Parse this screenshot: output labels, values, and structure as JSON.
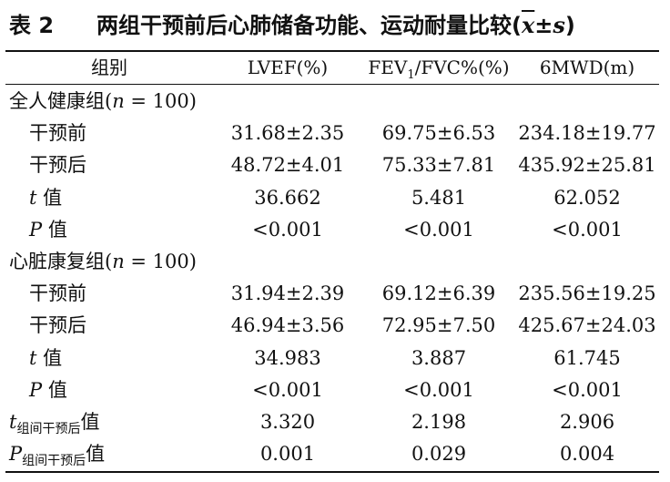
{
  "caption": {
    "number": "表 2",
    "title": "两组干预前后心肺储备功能、运动耐量比较(",
    "symbol": "x",
    "pm": "±",
    "s": "s",
    "close": ")"
  },
  "header": {
    "col0": "组别",
    "col1": "LVEF(%)",
    "col2_main": "FEV",
    "col2_sub": "1",
    "col2_rest": "/FVC%(%)",
    "col3": "6MWD(m)"
  },
  "rows": [
    {
      "type": "group",
      "label_pre": "全人健康组(",
      "label_n": "n",
      "label_post": " = 100)"
    },
    {
      "type": "data",
      "label": "干预前",
      "lvef": "31.68±2.35",
      "fev": "69.75±6.53",
      "mwd": "234.18±19.77"
    },
    {
      "type": "data",
      "label": "干预后",
      "lvef": "48.72±4.01",
      "fev": "75.33±7.81",
      "mwd": "435.92±25.81"
    },
    {
      "type": "stat",
      "sym": "t",
      "label": " 值",
      "lvef": "36.662",
      "fev": "5.481",
      "mwd": "62.052"
    },
    {
      "type": "stat",
      "sym": "P",
      "label": " 值",
      "lvef": "<0.001",
      "fev": "<0.001",
      "mwd": "<0.001"
    },
    {
      "type": "group",
      "label_pre": "心脏康复组(",
      "label_n": "n",
      "label_post": " = 100)"
    },
    {
      "type": "data",
      "label": "干预前",
      "lvef": "31.94±2.39",
      "fev": "69.12±6.39",
      "mwd": "235.56±19.25"
    },
    {
      "type": "data",
      "label": "干预后",
      "lvef": "46.94±3.56",
      "fev": "72.95±7.50",
      "mwd": "425.67±24.03"
    },
    {
      "type": "stat",
      "sym": "t",
      "label": " 值",
      "lvef": "34.983",
      "fev": "3.887",
      "mwd": "61.745"
    },
    {
      "type": "stat",
      "sym": "P",
      "label": " 值",
      "lvef": "<0.001",
      "fev": "<0.001",
      "mwd": "<0.001"
    },
    {
      "type": "between",
      "sym": "t",
      "sub": "组间干预后",
      "label": "值",
      "lvef": "3.320",
      "fev": "2.198",
      "mwd": "2.906"
    },
    {
      "type": "between",
      "sym": "P",
      "sub": "组间干预后",
      "label": "值",
      "lvef": "0.001",
      "fev": "0.029",
      "mwd": "0.004"
    }
  ]
}
